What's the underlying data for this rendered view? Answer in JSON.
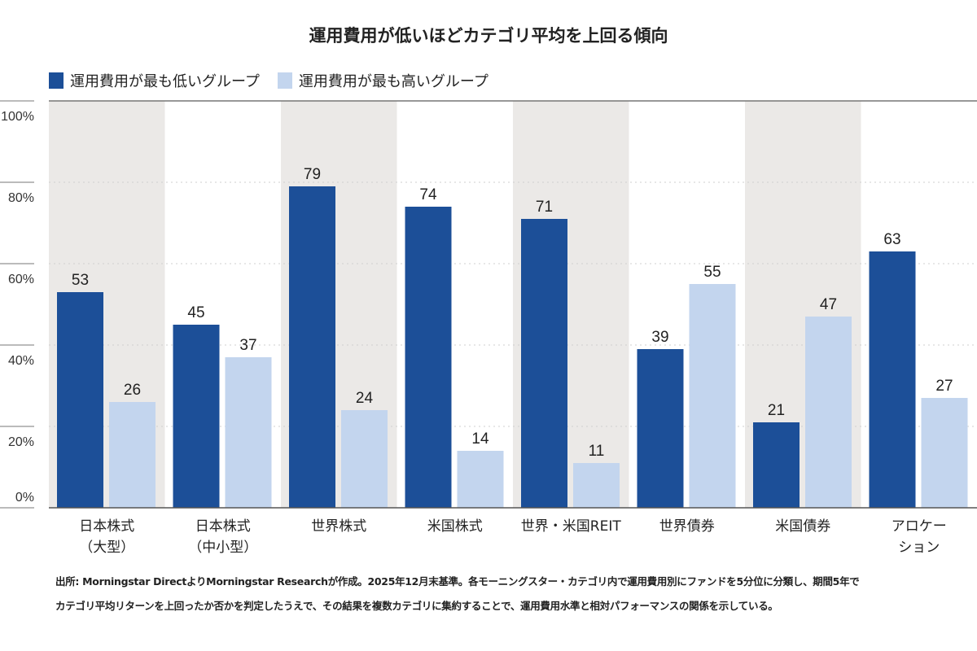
{
  "chart_data": {
    "type": "bar",
    "title": "運用費用が低いほどカテゴリ平均を上回る傾向",
    "categories": [
      [
        "日本株式",
        "（大型）"
      ],
      [
        "日本株式",
        "（中小型）"
      ],
      [
        "世界株式"
      ],
      [
        "米国株式"
      ],
      [
        "世界・米国REIT"
      ],
      [
        "世界債券"
      ],
      [
        "米国債券"
      ],
      [
        "アロケー",
        "ション"
      ]
    ],
    "series": [
      {
        "name": "運用費用が最も低いグループ",
        "color": "#1c4f98",
        "values": [
          53,
          45,
          79,
          74,
          71,
          39,
          21,
          63
        ]
      },
      {
        "name": "運用費用が最も高いグループ",
        "color": "#c3d5ee",
        "values": [
          26,
          37,
          24,
          14,
          11,
          55,
          47,
          27
        ]
      }
    ],
    "ylim": [
      0,
      100
    ],
    "yticks": [
      "0%",
      "20%",
      "40%",
      "60%",
      "80%",
      "100%"
    ],
    "grid": true,
    "legend": "top-left",
    "band_color": "#ebe9e7"
  },
  "footnote": [
    "出所: Morningstar DirectよりMorningstar Researchが作成。2025年12月末基準。各モーニングスター・カテゴリ内で運用費用別にファンドを5分位に分類し、期間5年で",
    "カテゴリ平均リターンを上回ったか否かを判定したうえで、その結果を複数カテゴリに集約することで、運用費用水準と相対パフォーマンスの関係を示している。"
  ]
}
